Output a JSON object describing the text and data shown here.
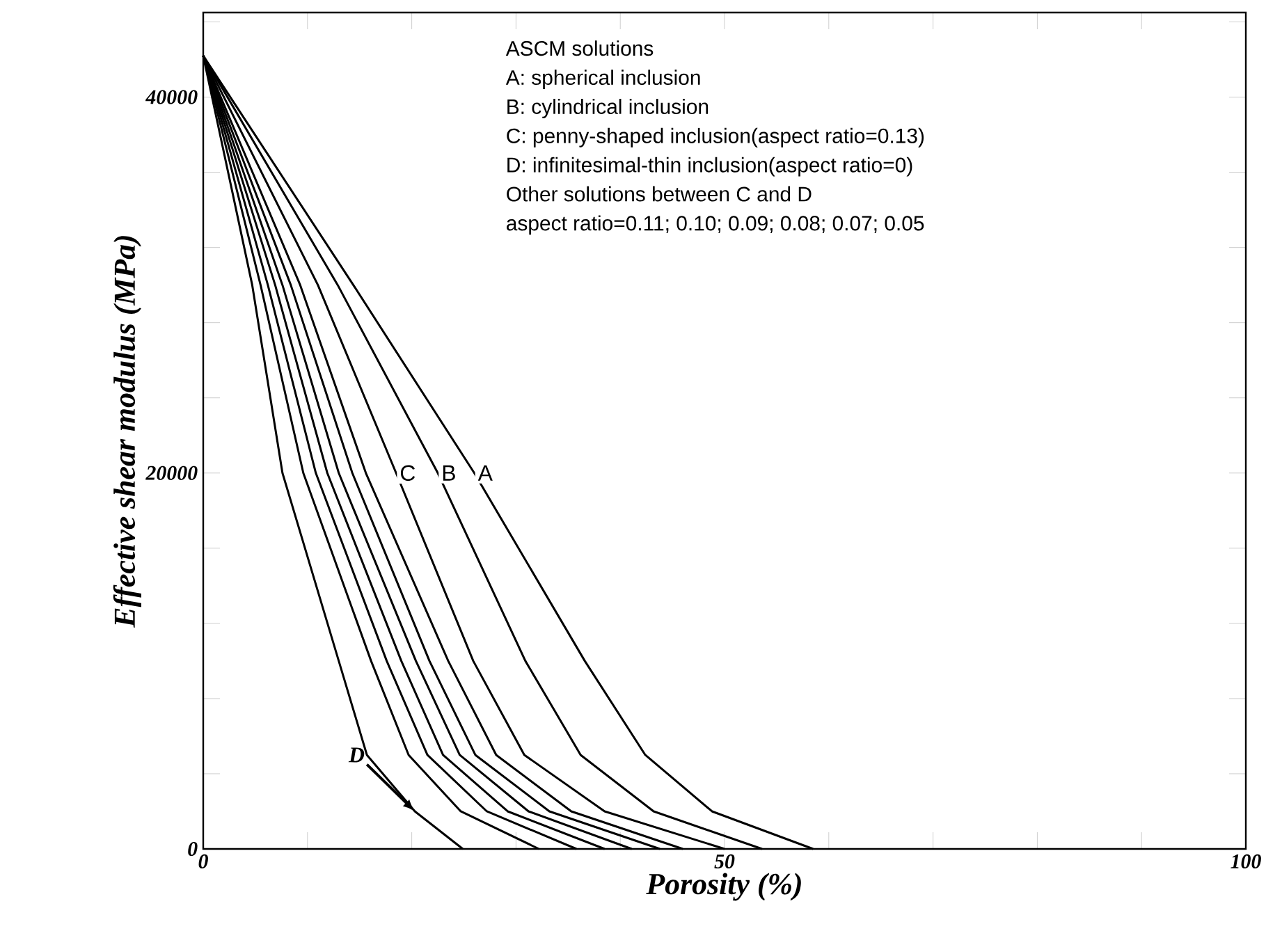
{
  "chart_data": {
    "type": "line",
    "xlabel": "Porosity (%)",
    "ylabel": "Effective shear modulus (MPa)",
    "xlim": [
      0,
      100
    ],
    "ylim": [
      0,
      44500
    ],
    "xticks": [
      0,
      {
        "value": 10,
        "label": null
      },
      {
        "value": 20,
        "label": null
      },
      {
        "value": 30,
        "label": null
      },
      {
        "value": 40,
        "label": null
      },
      50,
      {
        "value": 60,
        "label": null
      },
      {
        "value": 70,
        "label": null
      },
      {
        "value": 80,
        "label": null
      },
      {
        "value": 90,
        "label": null
      },
      100
    ],
    "yticks": [
      0,
      {
        "value": 4000,
        "label": null
      },
      {
        "value": 8000,
        "label": null
      },
      {
        "value": 12000,
        "label": null
      },
      {
        "value": 16000,
        "label": null
      },
      20000,
      {
        "value": 24000,
        "label": null
      },
      {
        "value": 28000,
        "label": null
      },
      {
        "value": 32000,
        "label": null
      },
      {
        "value": 36000,
        "label": null
      },
      40000,
      {
        "value": 44000,
        "label": null
      }
    ],
    "series": [
      {
        "name": "D",
        "color": "#000000",
        "x": [
          0,
          4.7,
          7.6,
          13.0,
          15.7,
          20.3,
          24.9
        ],
        "values": [
          42200,
          30000,
          20000,
          10000,
          5000,
          2000,
          0
        ]
      },
      {
        "color": "#000000",
        "x": [
          0,
          5.5,
          9.6,
          16.1,
          19.7,
          24.7,
          32.2
        ],
        "values": [
          42200,
          30000,
          20000,
          10000,
          5000,
          2000,
          0
        ]
      },
      {
        "color": "#000000",
        "x": [
          0,
          6.2,
          10.8,
          17.6,
          21.5,
          27.2,
          35.8
        ],
        "values": [
          42200,
          30000,
          20000,
          10000,
          5000,
          2000,
          0
        ]
      },
      {
        "color": "#000000",
        "x": [
          0,
          6.9,
          11.9,
          19.0,
          23.0,
          29.2,
          38.5
        ],
        "values": [
          42200,
          30000,
          20000,
          10000,
          5000,
          2000,
          0
        ]
      },
      {
        "color": "#000000",
        "x": [
          0,
          7.6,
          13.0,
          20.4,
          24.6,
          31.2,
          41.1
        ],
        "values": [
          42200,
          30000,
          20000,
          10000,
          5000,
          2000,
          0
        ]
      },
      {
        "color": "#000000",
        "x": [
          0,
          8.4,
          14.3,
          21.7,
          26.1,
          33.2,
          43.8
        ],
        "values": [
          42200,
          30000,
          20000,
          10000,
          5000,
          2000,
          0
        ]
      },
      {
        "color": "#000000",
        "x": [
          0,
          9.3,
          15.6,
          23.5,
          28.1,
          35.3,
          46.0
        ],
        "values": [
          42200,
          30000,
          20000,
          10000,
          5000,
          2000,
          0
        ]
      },
      {
        "name": "C",
        "color": "#000000",
        "x": [
          0,
          11.0,
          18.5,
          25.9,
          30.8,
          38.5,
          50.0
        ],
        "values": [
          42200,
          30000,
          20000,
          10000,
          5000,
          2000,
          0
        ]
      },
      {
        "name": "B",
        "color": "#000000",
        "x": [
          0,
          12.9,
          22.5,
          30.9,
          36.2,
          43.2,
          53.6
        ],
        "values": [
          42200,
          30000,
          20000,
          10000,
          5000,
          2000,
          0
        ]
      },
      {
        "name": "A",
        "color": "#000000",
        "x": [
          0,
          14.4,
          26.0,
          36.6,
          42.4,
          48.8,
          58.5
        ],
        "values": [
          42200,
          30000,
          20000,
          10000,
          5000,
          2000,
          0
        ]
      }
    ],
    "annotations": [
      "ASCM solutions",
      "A: spherical inclusion",
      "B: cylindrical inclusion",
      "C: penny-shaped inclusion(aspect ratio=0.13)",
      "D: infinitesimal-thin inclusion(aspect ratio=0)",
      "Other solutions between C and D",
      "aspect ratio=0.11; 0.10; 0.09; 0.08; 0.07; 0.05"
    ]
  }
}
